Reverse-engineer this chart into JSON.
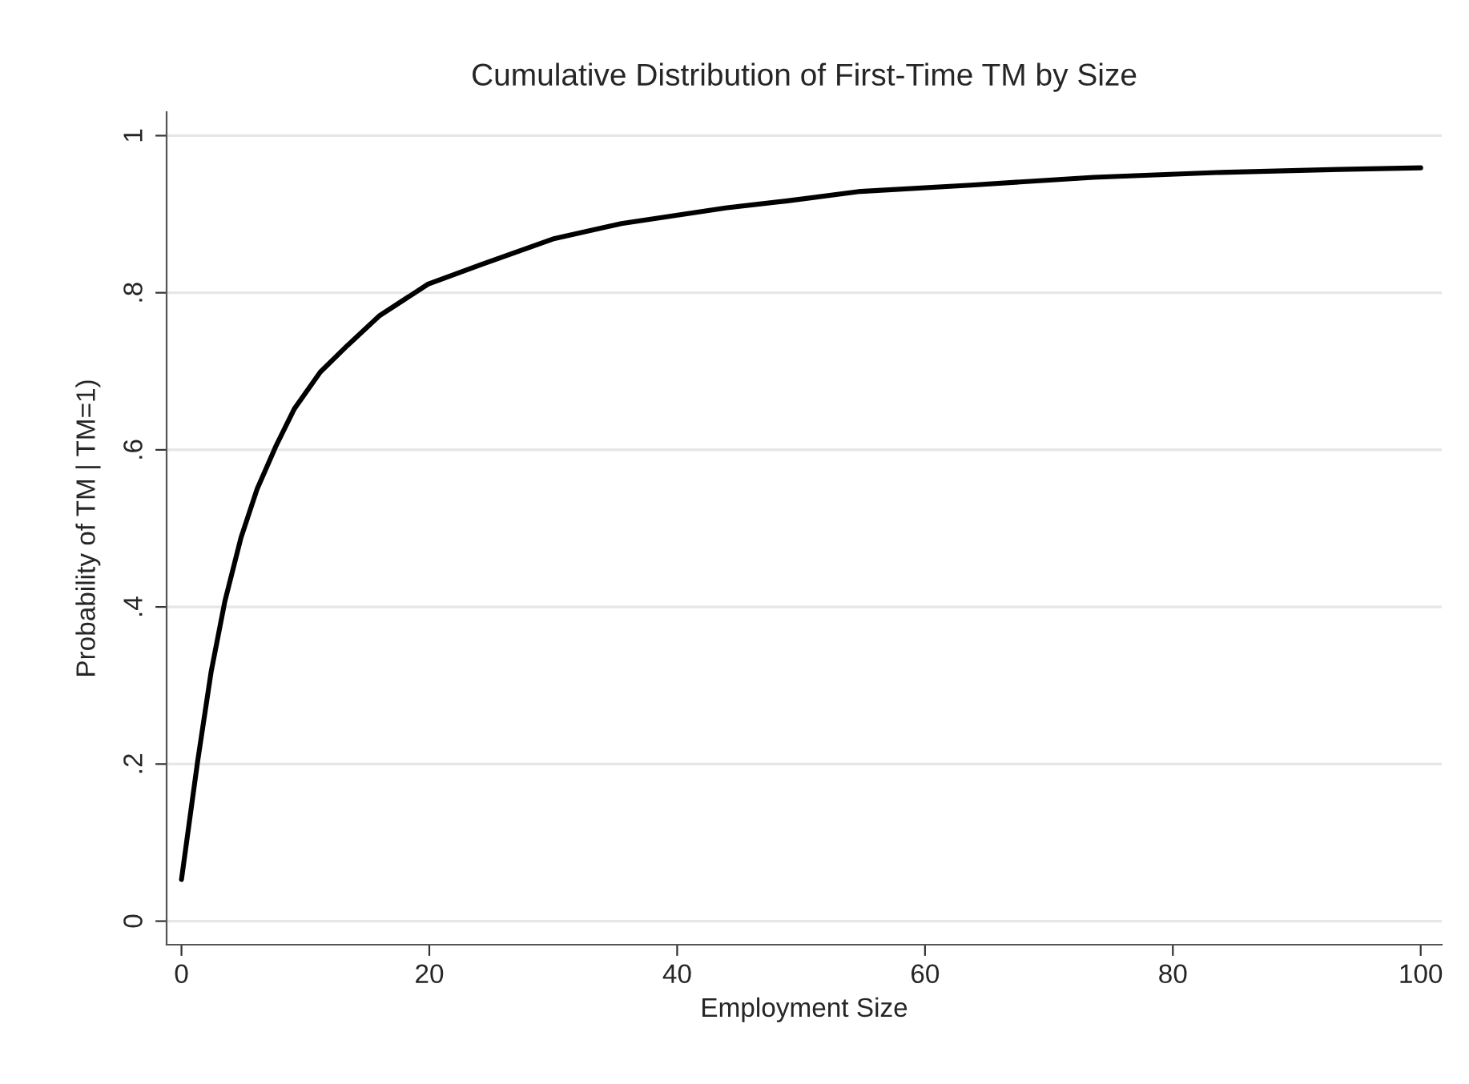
{
  "chart_data": {
    "type": "line",
    "title": "Cumulative Distribution of First-Time TM by Size",
    "xlabel": "Employment Size",
    "ylabel": "Probability of TM | TM=1)",
    "series": [
      {
        "color": "#000000",
        "x": [
          0,
          1.3,
          2.4,
          3.5,
          4.8,
          6.1,
          7.6,
          9.1,
          11.2,
          13.4,
          16.0,
          19.9,
          24.2,
          30.1,
          35.5,
          43.9,
          48.9,
          54.8,
          63.7,
          73.6,
          83.5,
          93.4,
          100
        ],
        "values": [
          0.053,
          0.203,
          0.318,
          0.407,
          0.488,
          0.55,
          0.604,
          0.652,
          0.699,
          0.733,
          0.771,
          0.811,
          0.836,
          0.869,
          0.888,
          0.908,
          0.917,
          0.929,
          0.937,
          0.947,
          0.953,
          0.957,
          0.959
        ]
      }
    ],
    "xlim": [
      -1.2,
      101.7
    ],
    "ylim": [
      -0.03,
      1.03
    ],
    "xticks": [
      0,
      20,
      40,
      60,
      80,
      100
    ],
    "yticks": [
      0,
      {
        "value": 0.2,
        "label": ".2"
      },
      {
        "value": 0.4,
        "label": ".4"
      },
      {
        "value": 0.6,
        "label": ".6"
      },
      {
        "value": 0.8,
        "label": ".8"
      },
      1
    ],
    "grid": "y",
    "marker": "none",
    "line_style": "solid"
  }
}
